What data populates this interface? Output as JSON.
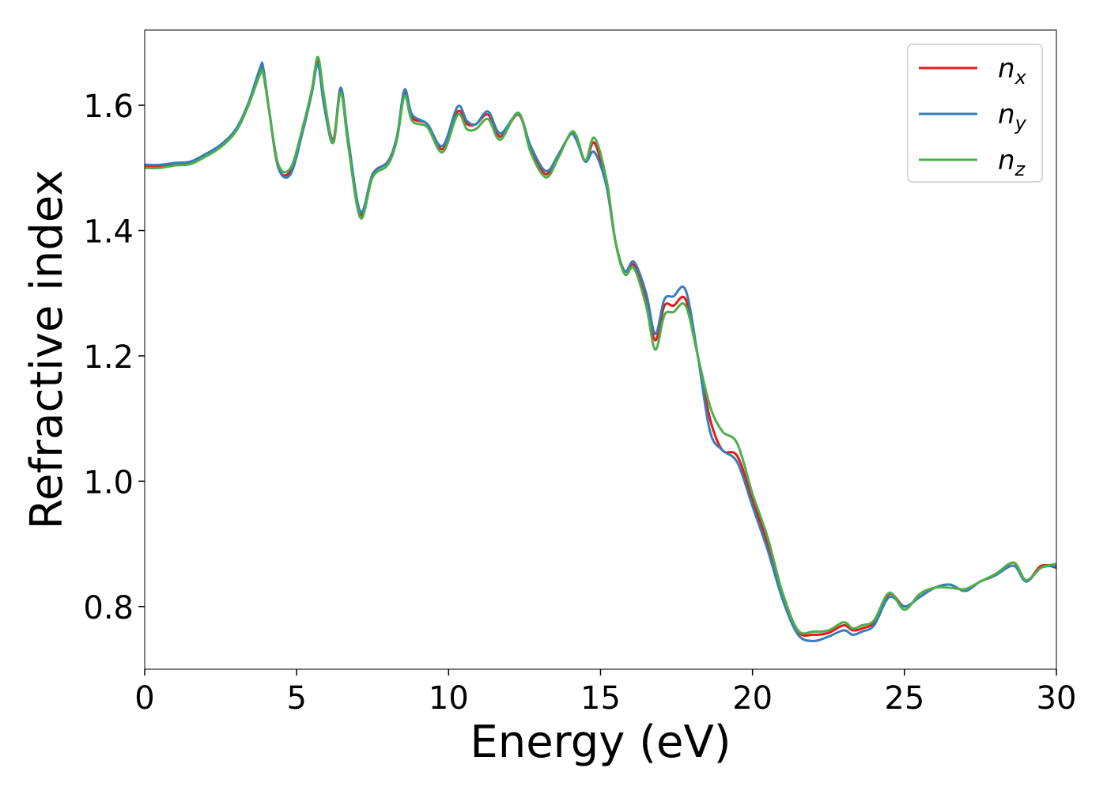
{
  "chart_data": {
    "type": "line",
    "title": "",
    "xlabel": "Energy (eV)",
    "ylabel": "Refractive index",
    "xlim": [
      0,
      30
    ],
    "ylim": [
      0.7,
      1.72
    ],
    "xticks": [
      0,
      5,
      10,
      15,
      20,
      25,
      30
    ],
    "xtick_labels": [
      "0",
      "5",
      "10",
      "15",
      "20",
      "25",
      "30"
    ],
    "yticks": [
      0.8,
      1.0,
      1.2,
      1.4,
      1.6
    ],
    "ytick_labels": [
      "0.8",
      "1.0",
      "1.2",
      "1.4",
      "1.6"
    ],
    "grid": false,
    "legend_position": "top-right",
    "x": [
      0,
      0.5,
      1,
      1.5,
      2,
      2.5,
      3,
      3.4,
      3.8,
      3.9,
      4.1,
      4.4,
      4.8,
      5.2,
      5.5,
      5.7,
      5.9,
      6.2,
      6.45,
      6.7,
      7.1,
      7.5,
      8,
      8.3,
      8.55,
      8.8,
      9.3,
      9.8,
      10.3,
      10.6,
      10.9,
      11.3,
      11.7,
      12.3,
      12.7,
      13.2,
      13.6,
      14,
      14.2,
      14.5,
      14.8,
      15.2,
      15.5,
      15.8,
      16.1,
      16.5,
      16.8,
      17.1,
      17.4,
      17.8,
      18.2,
      18.6,
      19,
      19.5,
      20,
      20.5,
      21,
      21.5,
      22,
      22.5,
      23,
      23.3,
      23.6,
      24,
      24.5,
      25,
      25.5,
      26,
      26.5,
      27,
      27.5,
      28,
      28.6,
      29,
      29.5,
      30
    ],
    "series": [
      {
        "name": "n",
        "subscript": "x",
        "color": "#e41a1c",
        "values": [
          1.503,
          1.503,
          1.506,
          1.508,
          1.52,
          1.535,
          1.56,
          1.6,
          1.655,
          1.655,
          1.59,
          1.5,
          1.495,
          1.56,
          1.62,
          1.672,
          1.61,
          1.545,
          1.625,
          1.54,
          1.425,
          1.49,
          1.51,
          1.55,
          1.62,
          1.58,
          1.57,
          1.53,
          1.59,
          1.57,
          1.57,
          1.585,
          1.55,
          1.585,
          1.53,
          1.49,
          1.52,
          1.553,
          1.55,
          1.51,
          1.54,
          1.47,
          1.38,
          1.335,
          1.345,
          1.29,
          1.225,
          1.28,
          1.28,
          1.29,
          1.2,
          1.1,
          1.05,
          1.04,
          0.97,
          0.9,
          0.82,
          0.76,
          0.755,
          0.758,
          0.77,
          0.762,
          0.765,
          0.775,
          0.82,
          0.8,
          0.815,
          0.83,
          0.835,
          0.825,
          0.84,
          0.85,
          0.87,
          0.84,
          0.865,
          0.862
        ]
      },
      {
        "name": "n",
        "subscript": "y",
        "color": "#377eb8",
        "values": [
          1.505,
          1.505,
          1.508,
          1.51,
          1.522,
          1.537,
          1.562,
          1.602,
          1.66,
          1.66,
          1.59,
          1.5,
          1.49,
          1.558,
          1.62,
          1.665,
          1.6,
          1.54,
          1.628,
          1.545,
          1.43,
          1.49,
          1.51,
          1.55,
          1.625,
          1.585,
          1.57,
          1.535,
          1.598,
          1.575,
          1.57,
          1.59,
          1.555,
          1.586,
          1.535,
          1.495,
          1.52,
          1.553,
          1.545,
          1.51,
          1.525,
          1.47,
          1.38,
          1.335,
          1.35,
          1.3,
          1.235,
          1.29,
          1.295,
          1.305,
          1.2,
          1.08,
          1.05,
          1.03,
          0.96,
          0.89,
          0.81,
          0.755,
          0.745,
          0.752,
          0.762,
          0.755,
          0.76,
          0.77,
          0.815,
          0.8,
          0.815,
          0.83,
          0.835,
          0.825,
          0.84,
          0.85,
          0.865,
          0.84,
          0.862,
          0.865
        ]
      },
      {
        "name": "n",
        "subscript": "z",
        "color": "#4daf4a",
        "values": [
          1.5,
          1.5,
          1.504,
          1.506,
          1.518,
          1.533,
          1.558,
          1.598,
          1.65,
          1.65,
          1.59,
          1.505,
          1.5,
          1.565,
          1.625,
          1.677,
          1.615,
          1.54,
          1.62,
          1.535,
          1.42,
          1.485,
          1.505,
          1.545,
          1.615,
          1.575,
          1.565,
          1.525,
          1.585,
          1.562,
          1.562,
          1.578,
          1.545,
          1.588,
          1.525,
          1.485,
          1.515,
          1.555,
          1.552,
          1.512,
          1.548,
          1.48,
          1.38,
          1.33,
          1.34,
          1.28,
          1.21,
          1.265,
          1.27,
          1.28,
          1.2,
          1.12,
          1.08,
          1.06,
          0.98,
          0.91,
          0.82,
          0.762,
          0.76,
          0.762,
          0.775,
          0.765,
          0.77,
          0.778,
          0.822,
          0.795,
          0.82,
          0.83,
          0.83,
          0.828,
          0.84,
          0.852,
          0.87,
          0.842,
          0.862,
          0.868
        ]
      }
    ]
  }
}
